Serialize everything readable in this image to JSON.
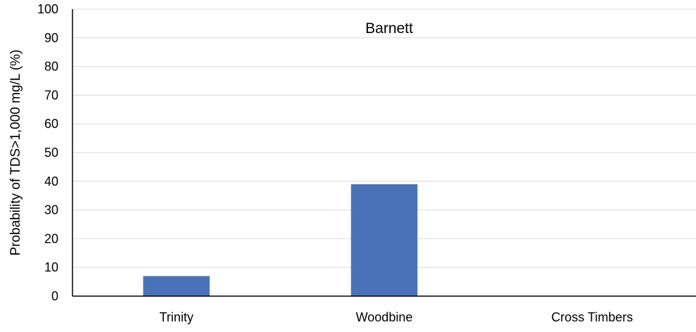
{
  "chart_data": {
    "type": "bar",
    "title": "Barnett",
    "xlabel": "",
    "ylabel": "Probability of TDS>1,000 mg/L (%)",
    "categories": [
      "Trinity",
      "Woodbine",
      "Cross Timbers"
    ],
    "values": [
      7,
      39,
      0
    ],
    "ylim": [
      0,
      100
    ],
    "yticks": [
      0,
      10,
      20,
      30,
      40,
      50,
      60,
      70,
      80,
      90,
      100
    ],
    "grid": true,
    "bar_color": "#4a72b8",
    "grid_color": "#d9d9d9"
  }
}
